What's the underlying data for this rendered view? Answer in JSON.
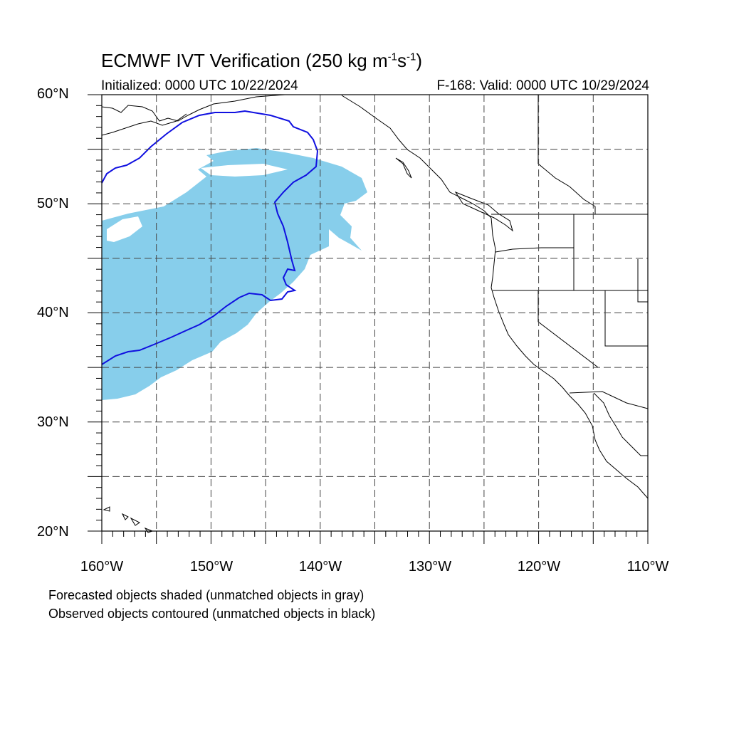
{
  "header": {
    "title": "ECMWF IVT Verification (250 kg m",
    "title_sup1": "-1",
    "title_mid": "s",
    "title_sup2": "-1",
    "title_end": ")",
    "initialized": "Initialized: 0000 UTC 10/22/2024",
    "valid": "F-168: Valid: 0000 UTC 10/29/2024"
  },
  "axes": {
    "lat_labels": [
      "60°N",
      "50°N",
      "40°N",
      "30°N",
      "20°N"
    ],
    "lon_labels": [
      "160°W",
      "150°W",
      "140°W",
      "130°W",
      "120°W",
      "110°W"
    ],
    "lat_range": [
      20,
      60
    ],
    "lon_range": [
      -160,
      -110
    ],
    "grid": "dashed every 5°"
  },
  "legend_notes": [
    "Forecasted objects shaded (unmatched objects in gray)",
    "Observed objects contoured (unmatched objects in black)"
  ],
  "colors": {
    "forecast_fill": "#87ceeb",
    "observed_contour": "#1010e0",
    "coastline": "#000000",
    "grid": "#555555"
  }
}
